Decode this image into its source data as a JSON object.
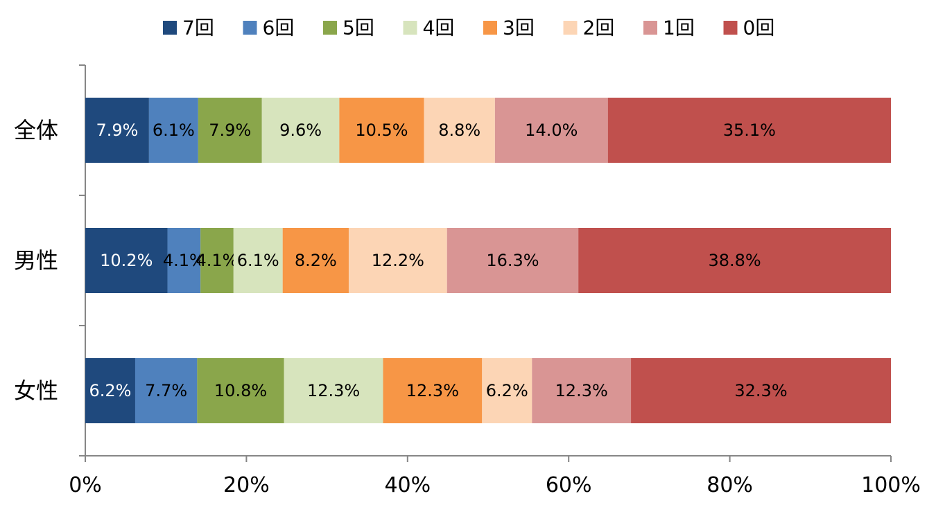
{
  "chart_data": {
    "type": "bar",
    "orientation": "horizontal",
    "stacked": "percent",
    "categories": [
      "全体",
      "男性",
      "女性"
    ],
    "series": [
      {
        "name": "7回",
        "color": "#1F497D",
        "label_color": "#FFFFFF",
        "values": [
          7.9,
          10.2,
          6.2
        ],
        "labels": [
          "7.9%",
          "10.2%",
          "6.2%"
        ]
      },
      {
        "name": "6回",
        "color": "#4F81BD",
        "label_color": "#000000",
        "values": [
          6.1,
          4.1,
          7.7
        ],
        "labels": [
          "6.1%",
          "4.1%",
          "7.7%"
        ]
      },
      {
        "name": "5回",
        "color": "#8AA64B",
        "label_color": "#000000",
        "values": [
          7.9,
          4.1,
          10.8
        ],
        "labels": [
          "7.9%",
          "4.1%",
          "10.8%"
        ]
      },
      {
        "name": "4回",
        "color": "#D7E4BD",
        "label_color": "#000000",
        "values": [
          9.6,
          6.1,
          12.3
        ],
        "labels": [
          "9.6%",
          "6.1%",
          "12.3%"
        ]
      },
      {
        "name": "3回",
        "color": "#F79646",
        "label_color": "#000000",
        "values": [
          10.5,
          8.2,
          12.3
        ],
        "labels": [
          "10.5%",
          "8.2%",
          "12.3%"
        ]
      },
      {
        "name": "2回",
        "color": "#FCD5B5",
        "label_color": "#000000",
        "values": [
          8.8,
          12.2,
          6.2
        ],
        "labels": [
          "8.8%",
          "12.2%",
          "6.2%"
        ]
      },
      {
        "name": "1回",
        "color": "#D99594",
        "label_color": "#000000",
        "values": [
          14.0,
          16.3,
          12.3
        ],
        "labels": [
          "14.0%",
          "16.3%",
          "12.3%"
        ]
      },
      {
        "name": "0回",
        "color": "#C0504D",
        "label_color": "#000000",
        "values": [
          35.1,
          38.8,
          32.3
        ],
        "labels": [
          "35.1%",
          "38.8%",
          "32.3%"
        ]
      }
    ],
    "x_ticks": [
      "0%",
      "20%",
      "40%",
      "60%",
      "80%",
      "100%"
    ],
    "xlim": [
      0,
      100
    ],
    "legend_position": "top",
    "grid": false
  }
}
